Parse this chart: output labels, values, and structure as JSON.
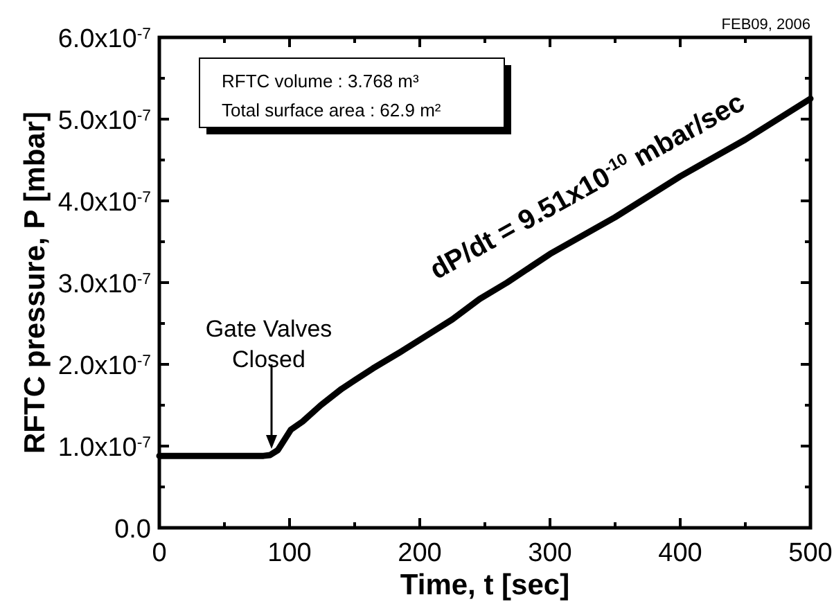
{
  "chart_data": {
    "type": "line",
    "xlabel": "Time, t [sec]",
    "ylabel": "RFTC pressure, P [mbar]",
    "x": [
      0,
      20,
      40,
      60,
      80,
      85,
      91,
      95,
      101,
      110,
      124,
      140,
      164,
      185,
      205,
      225,
      246,
      267,
      300,
      350,
      400,
      450,
      500
    ],
    "series": [
      {
        "color": "#000000",
        "values": [
          8.8e-08,
          8.8e-08,
          8.8e-08,
          8.8e-08,
          8.8e-08,
          8.9e-08,
          9.5e-08,
          1.05e-07,
          1.2e-07,
          1.3e-07,
          1.5e-07,
          1.7e-07,
          1.95e-07,
          2.15e-07,
          2.35e-07,
          2.55e-07,
          2.8e-07,
          3e-07,
          3.35e-07,
          3.8e-07,
          4.3e-07,
          4.75e-07,
          5.25e-07
        ]
      }
    ],
    "xlim": [
      0,
      500
    ],
    "ylim": [
      0,
      6e-07
    ],
    "xticks": [
      0,
      {
        "value": 50,
        "label": null
      },
      100,
      {
        "value": 150,
        "label": null
      },
      200,
      {
        "value": 250,
        "label": null
      },
      300,
      {
        "value": 350,
        "label": null
      },
      400,
      {
        "value": 450,
        "label": null
      },
      500
    ],
    "yticks": [
      {
        "value": 0,
        "label": "0.0"
      },
      {
        "value": 5e-08,
        "label": null
      },
      {
        "value": 1e-07,
        "label": "1.0x10$^{-7}$"
      },
      {
        "value": 1.5e-07,
        "label": null
      },
      {
        "value": 2e-07,
        "label": "2.0x10$^{-7}$"
      },
      {
        "value": 2.5e-07,
        "label": null
      },
      {
        "value": 3e-07,
        "label": "3.0x10$^{-7}$"
      },
      {
        "value": 3.5e-07,
        "label": null
      },
      {
        "value": 4e-07,
        "label": "4.0x10$^{-7}$"
      },
      {
        "value": 4.5e-07,
        "label": null
      },
      {
        "value": 5e-07,
        "label": "5.0x10$^{-7}$"
      },
      {
        "value": 5.5e-07,
        "label": null
      },
      {
        "value": 6e-07,
        "label": "6.0x10$^{-7}$"
      }
    ],
    "grid": false,
    "marker": "none",
    "line_style": "solid",
    "annotations": [
      "FEB09, 2006",
      "RFTC volume : 3.768 m³",
      "Total surface area : 62.9 m²",
      "Gate Valves\nClosed",
      "dP/dt = 9.51x10$^{-10}$ mbar/sec"
    ]
  }
}
